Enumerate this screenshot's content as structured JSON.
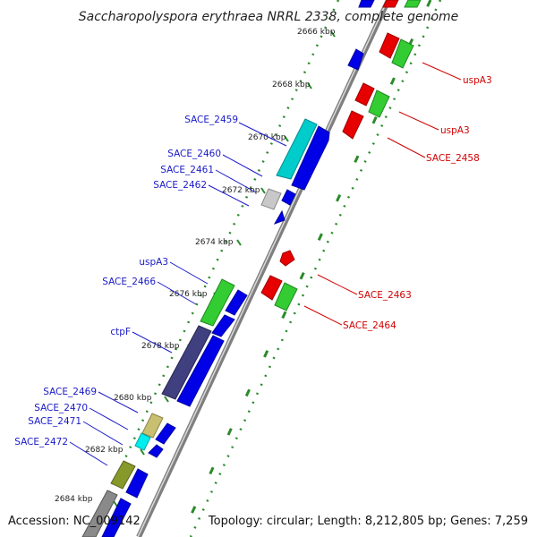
{
  "title": "Saccharopolyspora erythraea NRRL 2338, complete genome",
  "footer": {
    "accession": "Accession: NC_009142",
    "summary": "Topology: circular; Length: 8,212,805 bp; Genes: 7,259"
  },
  "ruler_ticks": [
    "2666 kbp",
    "2668 kbp",
    "2670 kbp",
    "2672 kbp",
    "2674 kbp",
    "2676 kbp",
    "2678 kbp",
    "2680 kbp",
    "2682 kbp",
    "2684 kbp"
  ],
  "left_labels": [
    "SACE_2459",
    "SACE_2460",
    "SACE_2461",
    "SACE_2462",
    "uspA3",
    "SACE_2466",
    "ctpF",
    "SACE_2469",
    "SACE_2470",
    "SACE_2471",
    "SACE_2472"
  ],
  "right_labels": [
    "uspA3",
    "uspA3",
    "SACE_2458",
    "SACE_2463",
    "SACE_2464"
  ],
  "colors": {
    "blue_label": "#1a1ac8",
    "red_label": "#d00000",
    "cds_blue": "#0000e6",
    "cds_red": "#e60000",
    "cds_green": "#33cc33",
    "cds_cyan": "#00cccc",
    "cds_purple": "#404080",
    "cds_olive": "#88992b",
    "cds_khaki": "#c8bf70",
    "cds_gray": "#9a9a9a",
    "backbone": "#8a8a8a",
    "dotted_track": "#2a8a2a"
  }
}
